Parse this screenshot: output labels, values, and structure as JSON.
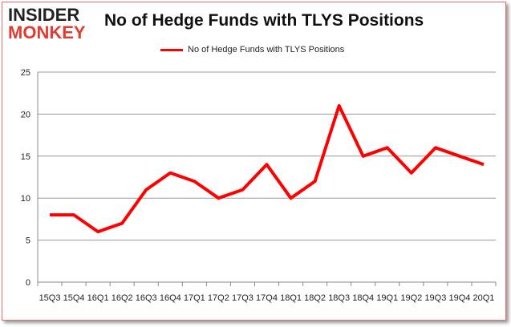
{
  "logo": {
    "line1": "INSIDER",
    "line2": "MONKEY"
  },
  "chart_data": {
    "type": "line",
    "title": "No of Hedge Funds with TLYS Positions",
    "xlabel": "",
    "ylabel": "",
    "categories": [
      "15Q3",
      "15Q4",
      "16Q1",
      "16Q2",
      "16Q3",
      "16Q4",
      "17Q1",
      "17Q2",
      "17Q3",
      "17Q4",
      "18Q1",
      "18Q2",
      "18Q3",
      "18Q4",
      "19Q1",
      "19Q2",
      "19Q3",
      "19Q4",
      "20Q1"
    ],
    "series": [
      {
        "name": "No of Hedge Funds with TLYS Positions",
        "color": "#ff0000",
        "values": [
          8,
          8,
          6,
          7,
          11,
          13,
          12,
          10,
          11,
          14,
          10,
          12,
          21,
          15,
          16,
          13,
          16,
          15,
          14
        ]
      }
    ],
    "ylim": [
      0,
      25
    ],
    "yticks": [
      0,
      5,
      10,
      15,
      20,
      25
    ],
    "grid": true,
    "legend_position": "top-center"
  }
}
